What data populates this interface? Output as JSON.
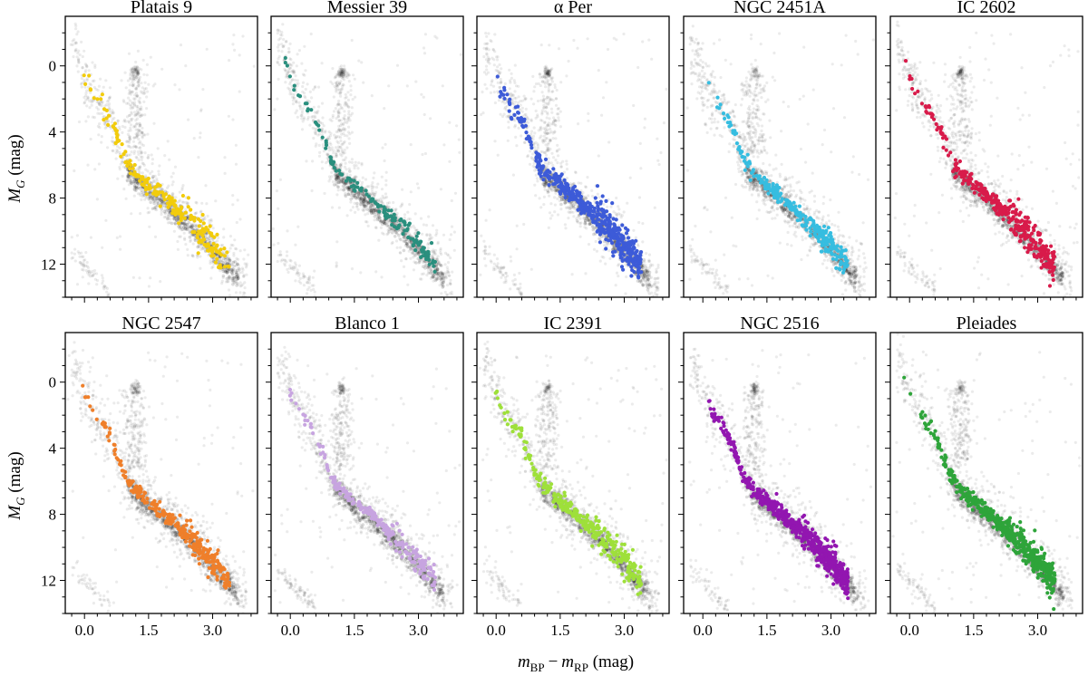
{
  "figure": {
    "xlabel": "m_BP − m_RP (mag)",
    "ylabel": "M_G (mag)",
    "xlabel_parts": {
      "m": "m",
      "sub1": "BP",
      "minus": "−",
      "sub2": "RP",
      "unit": " (mag)"
    },
    "ylabel_parts": {
      "m": "M",
      "sub": "G",
      "unit": " (mag)"
    }
  },
  "chart_data": [
    {
      "type": "scatter",
      "title": "Platais 9",
      "color": "#f2cc0c",
      "n_members": 210,
      "xlim": [
        -0.45,
        4.05
      ],
      "ylim": [
        14.0,
        -3.0
      ],
      "xticks": [
        0.0,
        1.5,
        3.0
      ],
      "yticks": [
        0,
        4,
        8,
        12
      ],
      "spread": 0.28,
      "sparse": 0.6
    },
    {
      "type": "scatter",
      "title": "Messier 39",
      "color": "#2a8f7e",
      "n_members": 150,
      "xlim": [
        -0.45,
        4.05
      ],
      "ylim": [
        14.0,
        -3.0
      ],
      "xticks": [
        0.0,
        1.5,
        3.0
      ],
      "yticks": [
        0,
        4,
        8,
        12
      ],
      "spread": 0.18,
      "sparse": 0.5
    },
    {
      "type": "scatter",
      "title": "α Per",
      "color": "#3d5bd8",
      "n_members": 520,
      "xlim": [
        -0.45,
        4.05
      ],
      "ylim": [
        14.0,
        -3.0
      ],
      "xticks": [
        0.0,
        1.5,
        3.0
      ],
      "yticks": [
        0,
        4,
        8,
        12
      ],
      "spread": 0.28,
      "sparse": 1.0
    },
    {
      "type": "scatter",
      "title": "NGC 2451A",
      "color": "#36bde0",
      "n_members": 260,
      "xlim": [
        -0.45,
        4.05
      ],
      "ylim": [
        14.0,
        -3.0
      ],
      "xticks": [
        0.0,
        1.5,
        3.0
      ],
      "yticks": [
        0,
        4,
        8,
        12
      ],
      "spread": 0.22,
      "sparse": 0.7
    },
    {
      "type": "scatter",
      "title": "IC 2602",
      "color": "#d81b4a",
      "n_members": 380,
      "xlim": [
        -0.45,
        4.05
      ],
      "ylim": [
        14.0,
        -3.0
      ],
      "xticks": [
        0.0,
        1.5,
        3.0
      ],
      "yticks": [
        0,
        4,
        8,
        12
      ],
      "spread": 0.26,
      "sparse": 0.9
    },
    {
      "type": "scatter",
      "title": "NGC 2547",
      "color": "#ef7f2a",
      "n_members": 300,
      "xlim": [
        -0.45,
        4.05
      ],
      "ylim": [
        14.0,
        -3.0
      ],
      "xticks": [
        0.0,
        1.5,
        3.0
      ],
      "yticks": [
        0,
        4,
        8,
        12
      ],
      "spread": 0.22,
      "sparse": 0.7
    },
    {
      "type": "scatter",
      "title": "Blanco 1",
      "color": "#c7a4e0",
      "n_members": 230,
      "xlim": [
        -0.45,
        4.05
      ],
      "ylim": [
        14.0,
        -3.0
      ],
      "xticks": [
        0.0,
        1.5,
        3.0
      ],
      "yticks": [
        0,
        4,
        8,
        12
      ],
      "spread": 0.2,
      "sparse": 0.6
    },
    {
      "type": "scatter",
      "title": "IC 2391",
      "color": "#9ee03a",
      "n_members": 330,
      "xlim": [
        -0.45,
        4.05
      ],
      "ylim": [
        14.0,
        -3.0
      ],
      "xticks": [
        0.0,
        1.5,
        3.0
      ],
      "yticks": [
        0,
        4,
        8,
        12
      ],
      "spread": 0.24,
      "sparse": 0.8
    },
    {
      "type": "scatter",
      "title": "NGC 2516",
      "color": "#9216b0",
      "n_members": 640,
      "xlim": [
        -0.45,
        4.05
      ],
      "ylim": [
        14.0,
        -3.0
      ],
      "xticks": [
        0.0,
        1.5,
        3.0
      ],
      "yticks": [
        0,
        4,
        8,
        12
      ],
      "spread": 0.22,
      "sparse": 1.0
    },
    {
      "type": "scatter",
      "title": "Pleiades",
      "color": "#2ea43a",
      "n_members": 560,
      "xlim": [
        -0.45,
        4.05
      ],
      "ylim": [
        14.0,
        -3.0
      ],
      "xticks": [
        0.0,
        1.5,
        3.0
      ],
      "yticks": [
        0,
        4,
        8,
        12
      ],
      "spread": 0.24,
      "sparse": 1.0
    }
  ]
}
